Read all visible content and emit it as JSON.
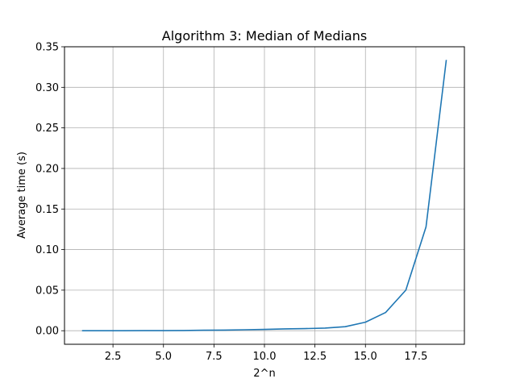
{
  "chart_data": {
    "type": "line",
    "title": "Algorithm 3: Median of Medians",
    "xlabel": "2^n",
    "ylabel": "Average time (s)",
    "xlim": [
      0.1,
      19.9
    ],
    "ylim": [
      -0.0167,
      0.35
    ],
    "grid": true,
    "x_ticks": [
      2.5,
      5.0,
      7.5,
      10.0,
      12.5,
      15.0,
      17.5
    ],
    "x_tick_labels": [
      "2.5",
      "5.0",
      "7.5",
      "10.0",
      "12.5",
      "15.0",
      "17.5"
    ],
    "y_ticks": [
      0.0,
      0.05,
      0.1,
      0.15,
      0.2,
      0.25,
      0.3,
      0.35
    ],
    "y_tick_labels": [
      "0.00",
      "0.05",
      "0.10",
      "0.15",
      "0.20",
      "0.25",
      "0.30",
      "0.35"
    ],
    "series": [
      {
        "color": "#1f77b4",
        "x": [
          1,
          2,
          3,
          4,
          5,
          6,
          7,
          8,
          9,
          10,
          11,
          12,
          13,
          14,
          15,
          16,
          17,
          18,
          19
        ],
        "y": [
          1e-05,
          2e-05,
          4e-05,
          8e-05,
          0.00016,
          0.0003,
          0.0006,
          0.0008,
          0.0012,
          0.0016,
          0.0022,
          0.0026,
          0.0032,
          0.005,
          0.0105,
          0.0225,
          0.05,
          0.128,
          0.333
        ]
      }
    ]
  }
}
